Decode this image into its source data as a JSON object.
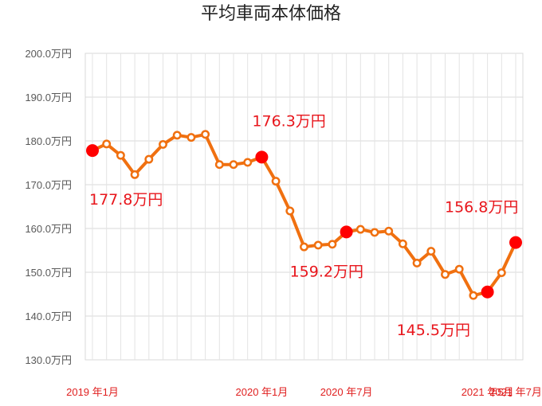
{
  "chart_data": {
    "type": "line",
    "title": "平均車両本体価格",
    "xlabel": "",
    "ylabel": "",
    "ylim": [
      130,
      200
    ],
    "y_ticks": [
      200,
      190,
      180,
      170,
      160,
      150,
      140,
      130
    ],
    "y_tick_labels": [
      "200.0万円",
      "190.0万円",
      "180.0万円",
      "170.0万円",
      "160.0万円",
      "150.0万円",
      "140.0万円",
      "130.0万円"
    ],
    "x_tick_labels": [
      {
        "index": 0,
        "label": "2019 年1月"
      },
      {
        "index": 12,
        "label": "2020 年1月"
      },
      {
        "index": 18,
        "label": "2020 年7月"
      },
      {
        "index": 28,
        "label": "2021 年5月"
      },
      {
        "index": 30,
        "label": "2021 年7月"
      }
    ],
    "grid": true,
    "legend": "none",
    "line_color": "#f07010",
    "highlight_color": "#ff0000",
    "annotation_color": "#e8161c",
    "values": [
      177.8,
      179.3,
      176.7,
      172.3,
      175.8,
      179.2,
      181.3,
      180.8,
      181.5,
      174.6,
      174.6,
      175.1,
      176.3,
      170.8,
      164.0,
      155.8,
      156.2,
      156.4,
      159.2,
      159.8,
      159.1,
      159.4,
      156.5,
      152.1,
      154.8,
      149.5,
      150.7,
      144.7,
      145.5,
      149.9,
      156.8
    ],
    "highlights": [
      {
        "index": 0,
        "label": "177.8万円"
      },
      {
        "index": 12,
        "label": "176.3万円"
      },
      {
        "index": 18,
        "label": "159.2万円"
      },
      {
        "index": 28,
        "label": "145.5万円"
      },
      {
        "index": 30,
        "label": "156.8万円"
      }
    ]
  }
}
